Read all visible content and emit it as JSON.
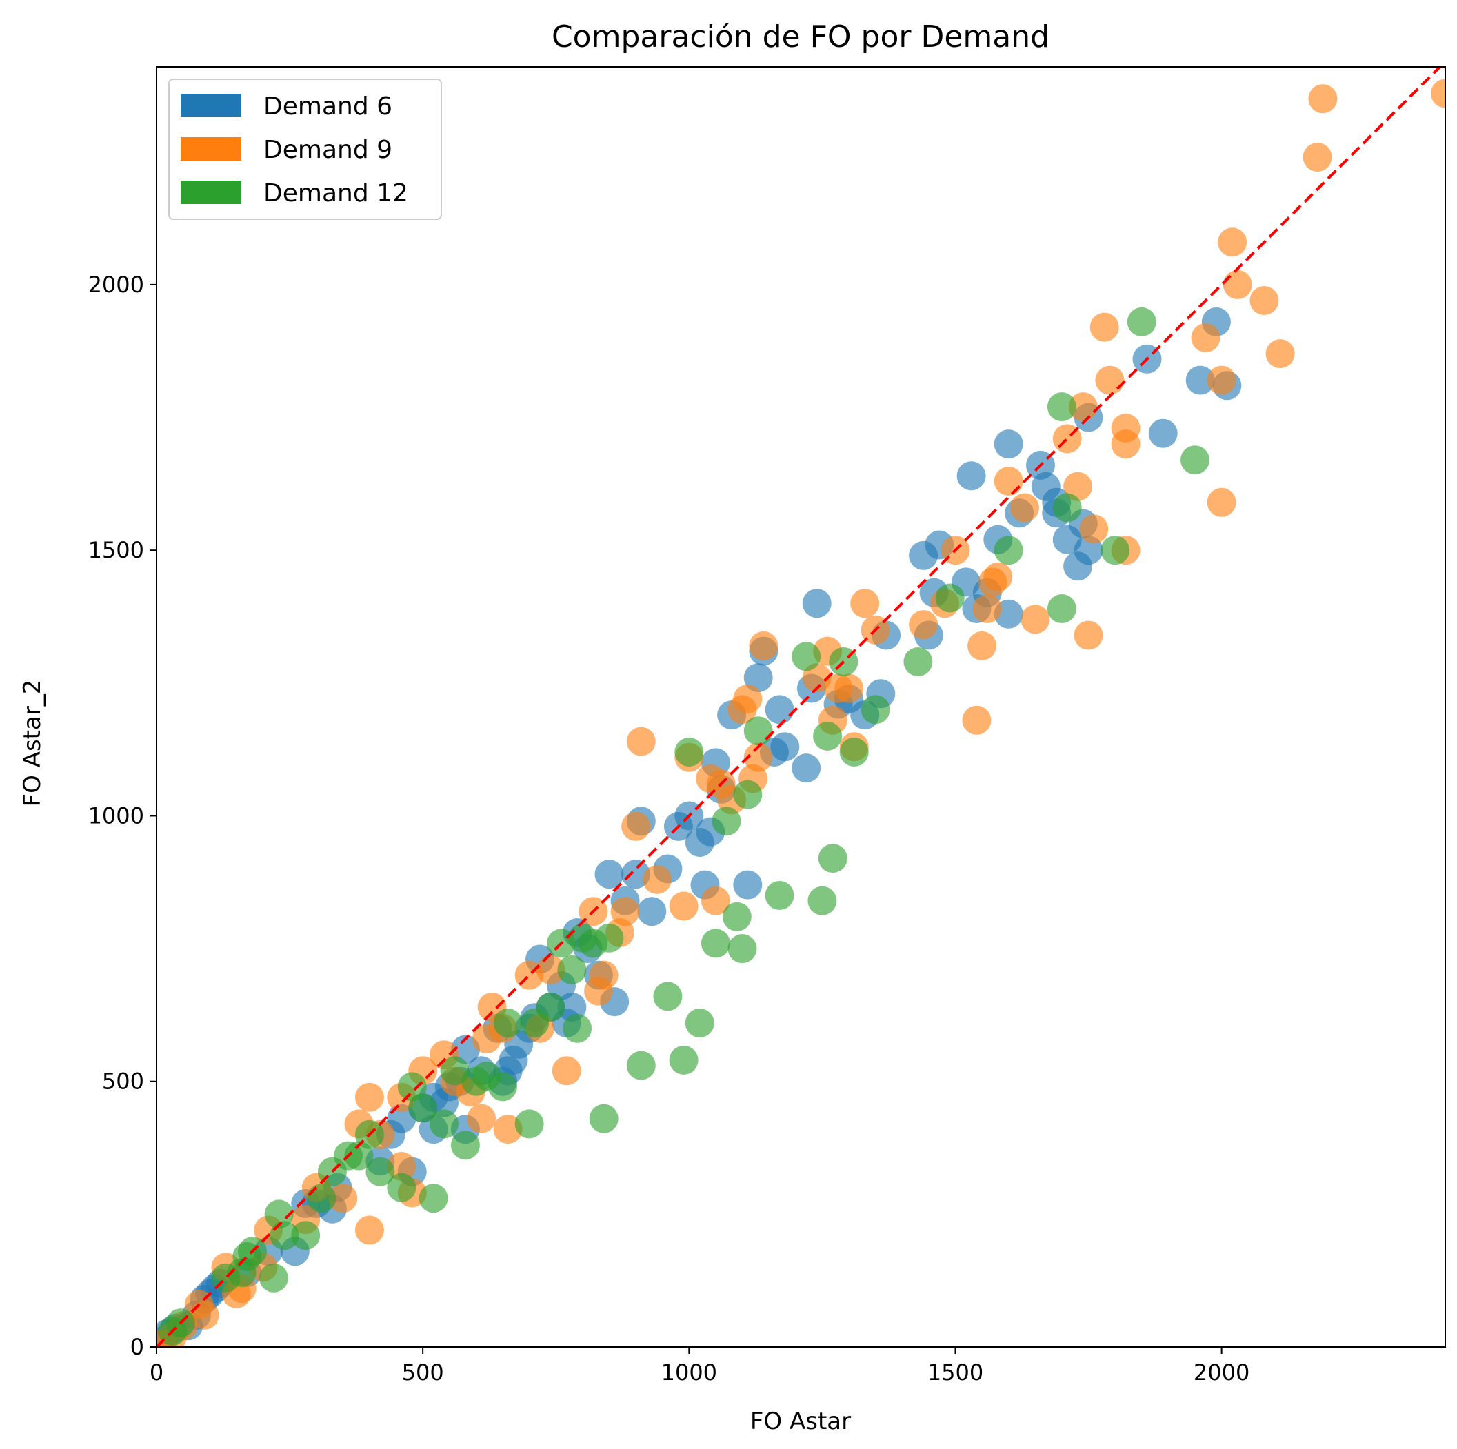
{
  "chart_data": {
    "type": "scatter",
    "title": "Comparación de FO por Demand",
    "xlabel": "FO Astar",
    "ylabel": "FO Astar_2",
    "xlim": [
      0,
      2420
    ],
    "ylim": [
      0,
      2410
    ],
    "xticks": [
      "0",
      "500",
      "1000",
      "1500",
      "2000"
    ],
    "yticks": [
      "0",
      "500",
      "1000",
      "1500",
      "2000"
    ],
    "grid": false,
    "legend_position": "top-left",
    "reference_line": {
      "style": "dashed",
      "color": "#ff0000",
      "from": [
        0,
        0
      ],
      "to": [
        2420,
        2420
      ]
    },
    "series": [
      {
        "name": "Demand 6",
        "color": "#1f77b4",
        "points": [
          [
            5,
            10
          ],
          [
            20,
            25
          ],
          [
            35,
            35
          ],
          [
            60,
            40
          ],
          [
            75,
            60
          ],
          [
            90,
            90
          ],
          [
            100,
            100
          ],
          [
            110,
            110
          ],
          [
            120,
            120
          ],
          [
            170,
            140
          ],
          [
            210,
            180
          ],
          [
            260,
            180
          ],
          [
            280,
            270
          ],
          [
            300,
            270
          ],
          [
            330,
            260
          ],
          [
            340,
            300
          ],
          [
            420,
            350
          ],
          [
            440,
            400
          ],
          [
            460,
            430
          ],
          [
            480,
            330
          ],
          [
            500,
            450
          ],
          [
            520,
            470
          ],
          [
            520,
            410
          ],
          [
            540,
            460
          ],
          [
            550,
            490
          ],
          [
            570,
            500
          ],
          [
            580,
            560
          ],
          [
            580,
            410
          ],
          [
            610,
            520
          ],
          [
            640,
            600
          ],
          [
            650,
            500
          ],
          [
            660,
            520
          ],
          [
            670,
            540
          ],
          [
            680,
            570
          ],
          [
            700,
            600
          ],
          [
            710,
            620
          ],
          [
            720,
            730
          ],
          [
            740,
            640
          ],
          [
            760,
            680
          ],
          [
            770,
            610
          ],
          [
            780,
            640
          ],
          [
            790,
            780
          ],
          [
            810,
            750
          ],
          [
            830,
            700
          ],
          [
            850,
            890
          ],
          [
            860,
            650
          ],
          [
            880,
            840
          ],
          [
            900,
            890
          ],
          [
            910,
            990
          ],
          [
            930,
            820
          ],
          [
            960,
            900
          ],
          [
            980,
            980
          ],
          [
            1000,
            1000
          ],
          [
            1020,
            950
          ],
          [
            1030,
            870
          ],
          [
            1040,
            970
          ],
          [
            1050,
            1100
          ],
          [
            1060,
            1050
          ],
          [
            1080,
            1190
          ],
          [
            1110,
            870
          ],
          [
            1130,
            1260
          ],
          [
            1140,
            1310
          ],
          [
            1160,
            1120
          ],
          [
            1170,
            1200
          ],
          [
            1180,
            1130
          ],
          [
            1220,
            1090
          ],
          [
            1230,
            1240
          ],
          [
            1240,
            1400
          ],
          [
            1280,
            1210
          ],
          [
            1300,
            1220
          ],
          [
            1330,
            1190
          ],
          [
            1360,
            1230
          ],
          [
            1370,
            1340
          ],
          [
            1440,
            1490
          ],
          [
            1450,
            1340
          ],
          [
            1460,
            1420
          ],
          [
            1470,
            1510
          ],
          [
            1520,
            1440
          ],
          [
            1530,
            1640
          ],
          [
            1540,
            1390
          ],
          [
            1560,
            1420
          ],
          [
            1580,
            1520
          ],
          [
            1600,
            1700
          ],
          [
            1600,
            1380
          ],
          [
            1620,
            1570
          ],
          [
            1660,
            1660
          ],
          [
            1670,
            1620
          ],
          [
            1690,
            1590
          ],
          [
            1690,
            1570
          ],
          [
            1710,
            1520
          ],
          [
            1730,
            1470
          ],
          [
            1740,
            1550
          ],
          [
            1750,
            1500
          ],
          [
            1750,
            1750
          ],
          [
            1860,
            1860
          ],
          [
            1890,
            1720
          ],
          [
            1960,
            1820
          ],
          [
            1990,
            1930
          ],
          [
            2010,
            1810
          ]
        ]
      },
      {
        "name": "Demand 9",
        "color": "#ff7f0e",
        "points": [
          [
            10,
            5
          ],
          [
            30,
            20
          ],
          [
            50,
            40
          ],
          [
            80,
            80
          ],
          [
            90,
            60
          ],
          [
            130,
            150
          ],
          [
            150,
            100
          ],
          [
            160,
            110
          ],
          [
            200,
            150
          ],
          [
            210,
            220
          ],
          [
            280,
            240
          ],
          [
            300,
            300
          ],
          [
            350,
            280
          ],
          [
            380,
            420
          ],
          [
            400,
            470
          ],
          [
            400,
            220
          ],
          [
            420,
            400
          ],
          [
            460,
            470
          ],
          [
            460,
            340
          ],
          [
            480,
            290
          ],
          [
            500,
            520
          ],
          [
            540,
            550
          ],
          [
            560,
            500
          ],
          [
            590,
            480
          ],
          [
            610,
            430
          ],
          [
            620,
            580
          ],
          [
            630,
            640
          ],
          [
            650,
            600
          ],
          [
            660,
            410
          ],
          [
            700,
            700
          ],
          [
            720,
            600
          ],
          [
            740,
            710
          ],
          [
            770,
            520
          ],
          [
            820,
            820
          ],
          [
            830,
            670
          ],
          [
            840,
            700
          ],
          [
            870,
            780
          ],
          [
            880,
            820
          ],
          [
            910,
            1140
          ],
          [
            900,
            980
          ],
          [
            940,
            880
          ],
          [
            990,
            830
          ],
          [
            1000,
            1110
          ],
          [
            1040,
            1070
          ],
          [
            1050,
            840
          ],
          [
            1060,
            1060
          ],
          [
            1080,
            1030
          ],
          [
            1100,
            1200
          ],
          [
            1110,
            1220
          ],
          [
            1120,
            1070
          ],
          [
            1130,
            1110
          ],
          [
            1140,
            1320
          ],
          [
            1240,
            1260
          ],
          [
            1260,
            1310
          ],
          [
            1270,
            1180
          ],
          [
            1280,
            1240
          ],
          [
            1300,
            1240
          ],
          [
            1310,
            1130
          ],
          [
            1330,
            1400
          ],
          [
            1350,
            1350
          ],
          [
            1440,
            1360
          ],
          [
            1480,
            1400
          ],
          [
            1500,
            1500
          ],
          [
            1540,
            1180
          ],
          [
            1550,
            1320
          ],
          [
            1560,
            1390
          ],
          [
            1570,
            1440
          ],
          [
            1580,
            1450
          ],
          [
            1600,
            1630
          ],
          [
            1630,
            1580
          ],
          [
            1650,
            1370
          ],
          [
            1710,
            1710
          ],
          [
            1730,
            1620
          ],
          [
            1740,
            1770
          ],
          [
            1750,
            1340
          ],
          [
            1760,
            1540
          ],
          [
            1780,
            1920
          ],
          [
            1790,
            1820
          ],
          [
            1820,
            1730
          ],
          [
            1820,
            1700
          ],
          [
            1820,
            1500
          ],
          [
            1970,
            1900
          ],
          [
            2000,
            1590
          ],
          [
            2000,
            1820
          ],
          [
            2020,
            2080
          ],
          [
            2030,
            2000
          ],
          [
            2080,
            1970
          ],
          [
            2110,
            1870
          ],
          [
            2180,
            2240
          ],
          [
            2190,
            2350
          ],
          [
            2420,
            2360
          ]
        ]
      },
      {
        "name": "Demand 12",
        "color": "#2ca02c",
        "points": [
          [
            30,
            30
          ],
          [
            45,
            45
          ],
          [
            130,
            130
          ],
          [
            160,
            140
          ],
          [
            170,
            170
          ],
          [
            180,
            180
          ],
          [
            220,
            130
          ],
          [
            230,
            250
          ],
          [
            240,
            210
          ],
          [
            280,
            210
          ],
          [
            310,
            280
          ],
          [
            330,
            330
          ],
          [
            360,
            360
          ],
          [
            380,
            360
          ],
          [
            400,
            400
          ],
          [
            420,
            330
          ],
          [
            460,
            300
          ],
          [
            480,
            490
          ],
          [
            500,
            450
          ],
          [
            520,
            280
          ],
          [
            540,
            420
          ],
          [
            560,
            520
          ],
          [
            580,
            380
          ],
          [
            600,
            500
          ],
          [
            620,
            510
          ],
          [
            650,
            490
          ],
          [
            660,
            610
          ],
          [
            700,
            420
          ],
          [
            710,
            610
          ],
          [
            740,
            640
          ],
          [
            760,
            760
          ],
          [
            780,
            710
          ],
          [
            790,
            600
          ],
          [
            800,
            770
          ],
          [
            820,
            760
          ],
          [
            840,
            430
          ],
          [
            850,
            770
          ],
          [
            910,
            530
          ],
          [
            960,
            660
          ],
          [
            990,
            540
          ],
          [
            1000,
            1120
          ],
          [
            1020,
            610
          ],
          [
            1050,
            760
          ],
          [
            1070,
            990
          ],
          [
            1090,
            810
          ],
          [
            1100,
            750
          ],
          [
            1110,
            1040
          ],
          [
            1130,
            1160
          ],
          [
            1170,
            850
          ],
          [
            1220,
            1300
          ],
          [
            1250,
            840
          ],
          [
            1260,
            1150
          ],
          [
            1270,
            920
          ],
          [
            1290,
            1290
          ],
          [
            1310,
            1120
          ],
          [
            1350,
            1200
          ],
          [
            1430,
            1290
          ],
          [
            1490,
            1410
          ],
          [
            1600,
            1500
          ],
          [
            1700,
            1390
          ],
          [
            1700,
            1770
          ],
          [
            1710,
            1580
          ],
          [
            1800,
            1500
          ],
          [
            1850,
            1930
          ],
          [
            1950,
            1670
          ]
        ]
      }
    ]
  }
}
